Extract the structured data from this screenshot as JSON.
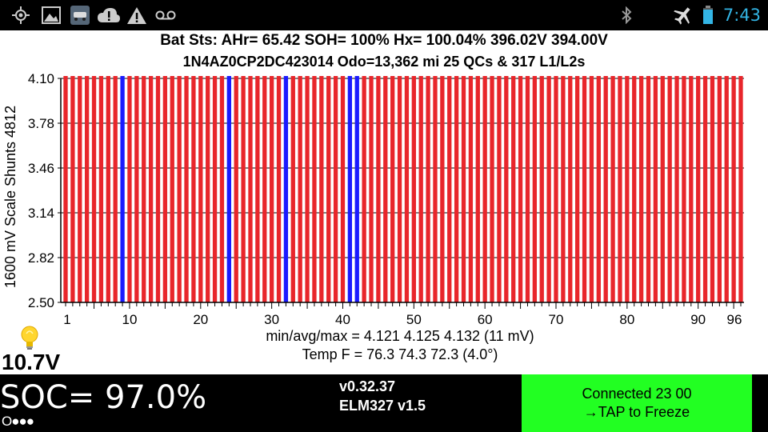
{
  "statusbar": {
    "time": "7:43",
    "left_icons": [
      "gps-icon",
      "gallery-icon",
      "car-app-icon",
      "cloud-alert-icon",
      "warning-icon",
      "voicemail-icon"
    ],
    "right_icons": [
      "bluetooth-icon",
      "airplane-mode-icon",
      "battery-icon"
    ],
    "clock_color": "#33b5e5"
  },
  "header": {
    "line1": "Bat Sts:  AHr= 65.42  SOH= 100%   Hx= 100.04%   396.02V 394.00V",
    "line2": "1N4AZ0CP2DC423014 Odo=13,362 mi  25 QCs  &  317 L1/L2s"
  },
  "chart": {
    "y_axis_label": "1600 mV Scale   Shunts 4812",
    "y_tick_labels": [
      "4.10",
      "3.78",
      "3.46",
      "3.14",
      "2.82",
      "2.50"
    ],
    "x_tick_labels": [
      "1",
      "10",
      "20",
      "30",
      "40",
      "50",
      "60",
      "70",
      "80",
      "90",
      "96"
    ]
  },
  "chart_data": {
    "type": "bar",
    "title": "",
    "xlabel": "",
    "ylabel": "1600 mV Scale   Shunts 4812",
    "x_range": [
      1,
      96
    ],
    "ylim": [
      2.5,
      4.1
    ],
    "cell_count": 96,
    "values_note": "All 96 cell voltages between 4.121 and 4.132 V",
    "min": 4.121,
    "avg": 4.125,
    "max": 4.132,
    "shunted_cells": [
      9,
      24,
      32,
      41,
      42
    ],
    "colors": {
      "normal": "#e8262b",
      "shunted": "#1a1aff"
    },
    "grid": true
  },
  "stats": {
    "line1": "min/avg/max = 4.121 4.125 4.132  (11 mV)",
    "line2": "Temp F = 76.3  74.3  72.3  (4.0°)"
  },
  "voltage": "10.7V",
  "bulb_icon": "lightbulb-icon",
  "bottom": {
    "soc": "SOC= 97.0%",
    "dots": "O●●●",
    "version": "v0.32.37",
    "elm": "ELM327 v1.5",
    "connected": "Connected 23 00",
    "freeze": "→TAP to Freeze",
    "button_color": "#22ff22"
  }
}
